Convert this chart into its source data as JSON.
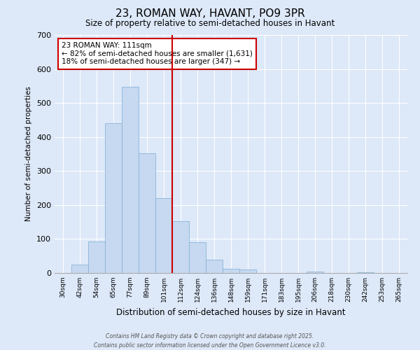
{
  "title": "23, ROMAN WAY, HAVANT, PO9 3PR",
  "subtitle": "Size of property relative to semi-detached houses in Havant",
  "xlabel": "Distribution of semi-detached houses by size in Havant",
  "ylabel": "Number of semi-detached properties",
  "bar_labels": [
    "30sqm",
    "42sqm",
    "54sqm",
    "65sqm",
    "77sqm",
    "89sqm",
    "101sqm",
    "112sqm",
    "124sqm",
    "136sqm",
    "148sqm",
    "159sqm",
    "171sqm",
    "183sqm",
    "195sqm",
    "206sqm",
    "218sqm",
    "230sqm",
    "242sqm",
    "253sqm",
    "265sqm"
  ],
  "bar_values": [
    0,
    25,
    93,
    440,
    547,
    352,
    220,
    152,
    90,
    40,
    13,
    10,
    0,
    0,
    0,
    5,
    0,
    0,
    3,
    0,
    0
  ],
  "bar_color": "#c6d9f0",
  "bar_edge_color": "#8ab4d9",
  "vline_color": "#cc0000",
  "annotation_title": "23 ROMAN WAY: 111sqm",
  "annotation_line1": "← 82% of semi-detached houses are smaller (1,631)",
  "annotation_line2": "18% of semi-detached houses are larger (347) →",
  "annotation_box_edgecolor": "#cc0000",
  "ylim": [
    0,
    700
  ],
  "yticks": [
    0,
    100,
    200,
    300,
    400,
    500,
    600,
    700
  ],
  "footer_line1": "Contains HM Land Registry data © Crown copyright and database right 2025.",
  "footer_line2": "Contains public sector information licensed under the Open Government Licence v3.0.",
  "background_color": "#dde8f8",
  "plot_bg_color": "#dde8f8"
}
